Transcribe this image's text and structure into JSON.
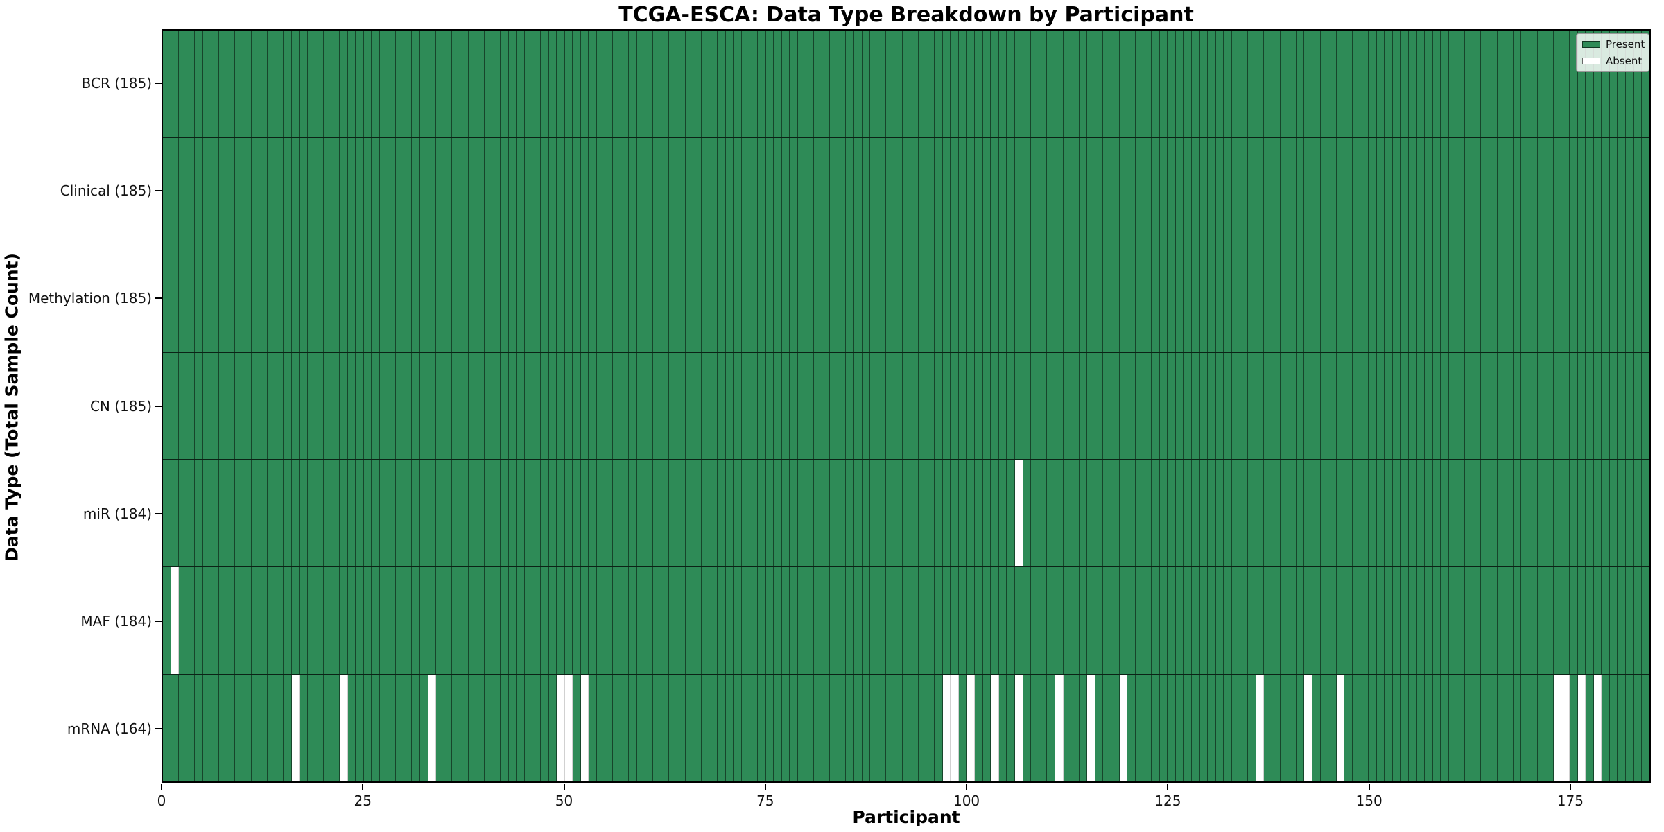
{
  "title": "TCGA-ESCA: Data Type Breakdown by Participant",
  "axes": {
    "xlabel": "Participant",
    "ylabel": "Data Type (Total Sample Count)"
  },
  "legend": {
    "items": [
      {
        "label": "Present",
        "color": "#2E8B57"
      },
      {
        "label": "Absent",
        "color": "#FFFFFF"
      }
    ]
  },
  "chart_data": {
    "type": "heatmap",
    "title": "TCGA-ESCA: Data Type Breakdown by Participant",
    "xlabel": "Participant",
    "ylabel": "Data Type (Total Sample Count)",
    "n_participants": 185,
    "x_tick_values": [
      0,
      25,
      50,
      75,
      100,
      125,
      150,
      175
    ],
    "x_range": [
      0,
      185
    ],
    "grid": "cell-borders",
    "legend_position": "upper-right",
    "value_encoding": {
      "present": 1,
      "absent": 0
    },
    "colors": {
      "present": "#2E8B57",
      "absent": "#FFFFFF",
      "cell_edge": "rgba(0,0,0,0.5)"
    },
    "rows": [
      {
        "data_type": "BCR",
        "label": "BCR (185)",
        "present_count": 185,
        "absent_participants": []
      },
      {
        "data_type": "Clinical",
        "label": "Clinical (185)",
        "present_count": 185,
        "absent_participants": []
      },
      {
        "data_type": "Methylation",
        "label": "Methylation (185)",
        "present_count": 185,
        "absent_participants": []
      },
      {
        "data_type": "CN",
        "label": "CN (185)",
        "present_count": 185,
        "absent_participants": []
      },
      {
        "data_type": "miR",
        "label": "miR (184)",
        "present_count": 184,
        "absent_participants": [
          106
        ]
      },
      {
        "data_type": "MAF",
        "label": "MAF (184)",
        "present_count": 184,
        "absent_participants": [
          1
        ]
      },
      {
        "data_type": "mRNA",
        "label": "mRNA (164)",
        "present_count": 164,
        "absent_participants": [
          16,
          22,
          33,
          49,
          50,
          52,
          97,
          98,
          100,
          103,
          106,
          111,
          115,
          119,
          136,
          142,
          146,
          173,
          174,
          176,
          178
        ]
      }
    ]
  }
}
